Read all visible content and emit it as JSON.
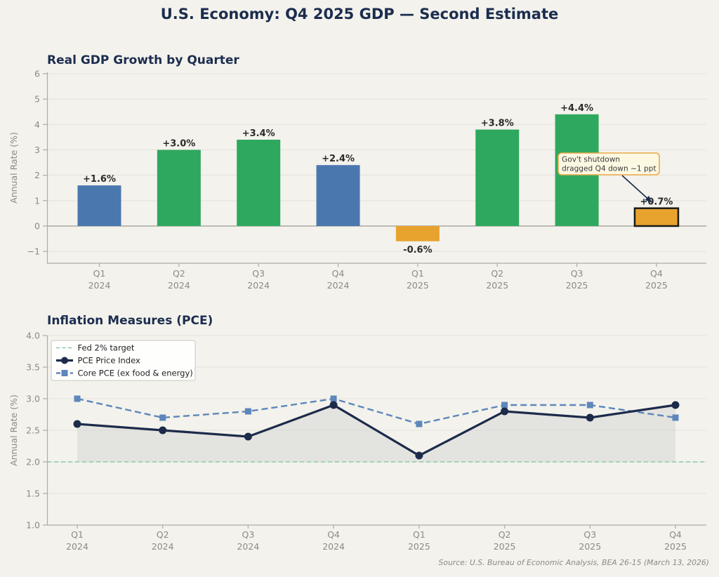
{
  "page": {
    "title": "U.S. Economy: Q4 2025 GDP — Second Estimate",
    "source_note": "Source: U.S. Bureau of Economic Analysis, BEA 26-15 (March 13, 2026)",
    "background": "#f3f2ec",
    "title_color": "#1b2d4f"
  },
  "chart_data": [
    {
      "type": "bar",
      "title": "Real GDP Growth by Quarter",
      "ylabel": "Annual Rate (%)",
      "ylim": [
        -1.45,
        6.05
      ],
      "yticks": [
        -1,
        0,
        1,
        2,
        3,
        4,
        5,
        6
      ],
      "categories": [
        "Q1 2024",
        "Q2 2024",
        "Q3 2024",
        "Q4 2024",
        "Q1 2025",
        "Q2 2025",
        "Q3 2025",
        "Q4 2025"
      ],
      "values": [
        1.6,
        3.0,
        3.4,
        2.4,
        -0.6,
        3.8,
        4.4,
        0.7
      ],
      "bar_labels": [
        "+1.6%",
        "+3.0%",
        "+3.4%",
        "+2.4%",
        "-0.6%",
        "+3.8%",
        "+4.4%",
        "+0.7%"
      ],
      "bar_colors": [
        "#4a78ae",
        "#2fa85f",
        "#2fa85f",
        "#4a78ae",
        "#e8a32e",
        "#2fa85f",
        "#2fa85f",
        "#e8a32e"
      ],
      "highlight_index": 7,
      "highlight_edge_color": "#1a1a1a",
      "grid": true,
      "annotation": {
        "text_lines": [
          "Gov't shutdown",
          "dragged Q4 down ~1 ppt"
        ],
        "box_fill": "#fdf8e2",
        "box_edge": "#e9a84b",
        "arrow_color": "#1b2d4f"
      }
    },
    {
      "type": "line",
      "title": "Inflation Measures (PCE)",
      "ylabel": "Annual Rate (%)",
      "ylim": [
        1.0,
        4.0
      ],
      "yticks": [
        1.0,
        1.5,
        2.0,
        2.5,
        3.0,
        3.5,
        4.0
      ],
      "categories": [
        "Q1 2024",
        "Q2 2024",
        "Q3 2024",
        "Q4 2024",
        "Q1 2025",
        "Q2 2025",
        "Q3 2025",
        "Q4 2025"
      ],
      "target_line": {
        "label": "Fed 2% target",
        "y": 2.0,
        "color": "#86cba7"
      },
      "series": [
        {
          "name": "PCE Price Index",
          "values": [
            2.6,
            2.5,
            2.4,
            2.9,
            2.1,
            2.8,
            2.7,
            2.9
          ],
          "color": "#1c2b4a",
          "marker": "circle",
          "style": "solid",
          "fill_to_target": true,
          "fill_color": "#d4d4d2"
        },
        {
          "name": "Core PCE (ex food & energy)",
          "values": [
            3.0,
            2.7,
            2.8,
            3.0,
            2.6,
            2.9,
            2.9,
            2.7
          ],
          "color": "#5d87bb",
          "marker": "square",
          "style": "dashed"
        }
      ],
      "legend_position": "upper left",
      "grid": true
    }
  ]
}
